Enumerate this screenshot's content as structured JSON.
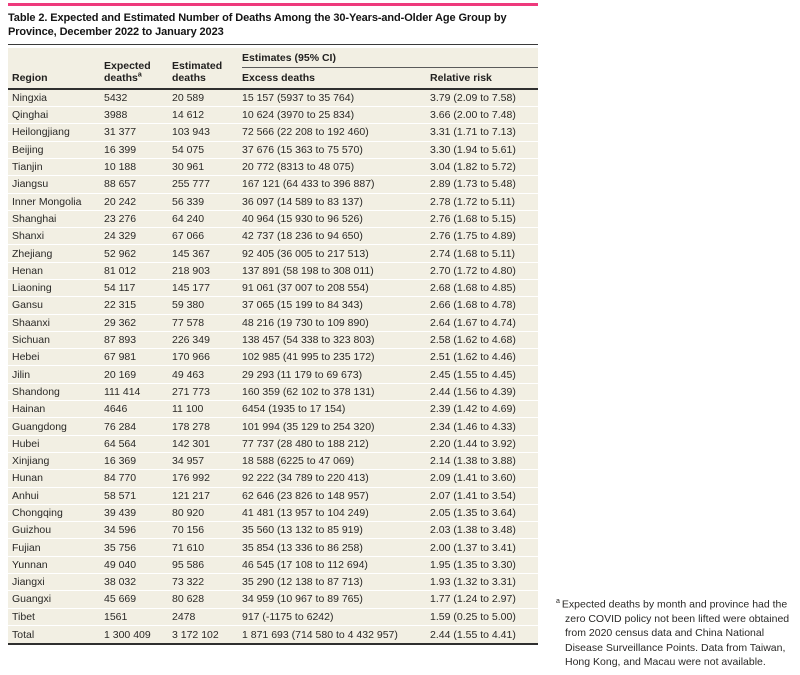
{
  "title": "Table 2. Expected and Estimated Number of Deaths Among the 30-Years-and-Older Age Group by Province, December 2022 to January 2023",
  "table": {
    "group_header": "Estimates (95% CI)",
    "columns": {
      "region": "Region",
      "expected_line1": "Expected",
      "expected_line2": "deaths",
      "expected_sup": "a",
      "estimated_line1": "Estimated",
      "estimated_line2": "deaths",
      "excess": "Excess deaths",
      "relative_risk": "Relative risk"
    },
    "rows": [
      {
        "region": "Ningxia",
        "expected": "5432",
        "estimated": "20 589",
        "excess": "15 157 (5937 to 35 764)",
        "relative_risk": "3.79 (2.09 to 7.58)"
      },
      {
        "region": "Qinghai",
        "expected": "3988",
        "estimated": "14 612",
        "excess": "10 624 (3970 to 25 834)",
        "relative_risk": "3.66 (2.00 to 7.48)"
      },
      {
        "region": "Heilongjiang",
        "expected": "31 377",
        "estimated": "103 943",
        "excess": "72 566 (22 208 to 192 460)",
        "relative_risk": "3.31 (1.71 to 7.13)"
      },
      {
        "region": "Beijing",
        "expected": "16 399",
        "estimated": "54 075",
        "excess": "37 676 (15 363 to 75 570)",
        "relative_risk": "3.30 (1.94 to 5.61)"
      },
      {
        "region": "Tianjin",
        "expected": "10 188",
        "estimated": "30 961",
        "excess": "20 772 (8313 to 48 075)",
        "relative_risk": "3.04 (1.82 to 5.72)"
      },
      {
        "region": "Jiangsu",
        "expected": "88 657",
        "estimated": "255 777",
        "excess": "167 121 (64 433 to 396 887)",
        "relative_risk": "2.89 (1.73 to 5.48)"
      },
      {
        "region": "Inner Mongolia",
        "expected": "20 242",
        "estimated": "56 339",
        "excess": "36 097 (14 589 to 83 137)",
        "relative_risk": "2.78 (1.72 to 5.11)"
      },
      {
        "region": "Shanghai",
        "expected": "23 276",
        "estimated": "64 240",
        "excess": "40 964 (15 930 to 96 526)",
        "relative_risk": "2.76 (1.68 to 5.15)"
      },
      {
        "region": "Shanxi",
        "expected": "24 329",
        "estimated": "67 066",
        "excess": "42 737 (18 236 to 94 650)",
        "relative_risk": "2.76 (1.75 to 4.89)"
      },
      {
        "region": "Zhejiang",
        "expected": "52 962",
        "estimated": "145 367",
        "excess": "92 405 (36 005 to 217 513)",
        "relative_risk": "2.74 (1.68 to 5.11)"
      },
      {
        "region": "Henan",
        "expected": "81 012",
        "estimated": "218 903",
        "excess": "137 891 (58 198 to 308 011)",
        "relative_risk": "2.70 (1.72 to 4.80)"
      },
      {
        "region": "Liaoning",
        "expected": "54 117",
        "estimated": "145 177",
        "excess": "91 061 (37 007 to 208 554)",
        "relative_risk": "2.68 (1.68 to 4.85)"
      },
      {
        "region": "Gansu",
        "expected": "22 315",
        "estimated": "59 380",
        "excess": "37 065 (15 199 to 84 343)",
        "relative_risk": "2.66 (1.68 to 4.78)"
      },
      {
        "region": "Shaanxi",
        "expected": "29 362",
        "estimated": "77 578",
        "excess": "48 216 (19 730 to 109 890)",
        "relative_risk": "2.64 (1.67 to 4.74)"
      },
      {
        "region": "Sichuan",
        "expected": "87 893",
        "estimated": "226 349",
        "excess": "138 457 (54 338 to 323 803)",
        "relative_risk": "2.58 (1.62 to 4.68)"
      },
      {
        "region": "Hebei",
        "expected": "67 981",
        "estimated": "170 966",
        "excess": "102 985 (41 995 to 235 172)",
        "relative_risk": "2.51 (1.62 to 4.46)"
      },
      {
        "region": "Jilin",
        "expected": "20 169",
        "estimated": "49 463",
        "excess": "29 293 (11 179 to 69 673)",
        "relative_risk": "2.45 (1.55 to 4.45)"
      },
      {
        "region": "Shandong",
        "expected": "111 414",
        "estimated": "271 773",
        "excess": "160 359 (62 102 to 378 131)",
        "relative_risk": "2.44 (1.56 to 4.39)"
      },
      {
        "region": "Hainan",
        "expected": "4646",
        "estimated": "11 100",
        "excess": "6454 (1935 to 17 154)",
        "relative_risk": "2.39 (1.42 to 4.69)"
      },
      {
        "region": "Guangdong",
        "expected": "76 284",
        "estimated": "178 278",
        "excess": "101 994 (35 129 to 254 320)",
        "relative_risk": "2.34 (1.46 to 4.33)"
      },
      {
        "region": "Hubei",
        "expected": "64 564",
        "estimated": "142 301",
        "excess": "77 737 (28 480 to 188 212)",
        "relative_risk": "2.20 (1.44 to 3.92)"
      },
      {
        "region": "Xinjiang",
        "expected": "16 369",
        "estimated": "34 957",
        "excess": "18 588 (6225 to 47 069)",
        "relative_risk": "2.14 (1.38 to 3.88)"
      },
      {
        "region": "Hunan",
        "expected": "84 770",
        "estimated": "176 992",
        "excess": "92 222 (34 789 to 220 413)",
        "relative_risk": "2.09 (1.41 to 3.60)"
      },
      {
        "region": "Anhui",
        "expected": "58 571",
        "estimated": "121 217",
        "excess": "62 646 (23 826 to 148 957)",
        "relative_risk": "2.07 (1.41 to 3.54)"
      },
      {
        "region": "Chongqing",
        "expected": "39 439",
        "estimated": "80 920",
        "excess": "41 481 (13 957 to 104 249)",
        "relative_risk": "2.05 (1.35 to 3.64)"
      },
      {
        "region": "Guizhou",
        "expected": "34 596",
        "estimated": "70 156",
        "excess": "35 560 (13 132 to 85 919)",
        "relative_risk": "2.03 (1.38 to 3.48)"
      },
      {
        "region": "Fujian",
        "expected": "35 756",
        "estimated": "71 610",
        "excess": "35 854 (13 336 to 86 258)",
        "relative_risk": "2.00 (1.37 to 3.41)"
      },
      {
        "region": "Yunnan",
        "expected": "49 040",
        "estimated": "95 586",
        "excess": "46 545 (17 108 to 112 694)",
        "relative_risk": "1.95 (1.35 to 3.30)"
      },
      {
        "region": "Jiangxi",
        "expected": "38 032",
        "estimated": "73 322",
        "excess": "35 290 (12 138 to 87 713)",
        "relative_risk": "1.93 (1.32 to 3.31)"
      },
      {
        "region": "Guangxi",
        "expected": "45 669",
        "estimated": "80 628",
        "excess": "34 959 (10 967 to 89 765)",
        "relative_risk": "1.77 (1.24 to 2.97)"
      },
      {
        "region": "Tibet",
        "expected": "1561",
        "estimated": "2478",
        "excess": "917 (-1175 to 6242)",
        "relative_risk": "1.59 (0.25 to 5.00)"
      },
      {
        "region": "Total",
        "expected": "1 300 409",
        "estimated": "3 172 102",
        "excess": "1 871 693 (714 580 to 4 432 957)",
        "relative_risk": "2.44 (1.55 to 4.41)"
      }
    ]
  },
  "footnote": {
    "marker": "a",
    "text": "Expected deaths by month and province had the zero COVID policy not been lifted were obtained from 2020 census data and China National Disease Surveillance Points. Data from Taiwan, Hong Kong, and Macau were not available."
  },
  "colors": {
    "accent_pink": "#ee3a7c",
    "row_cream": "#f2efe3",
    "rule_dark": "#2f2f2f"
  }
}
